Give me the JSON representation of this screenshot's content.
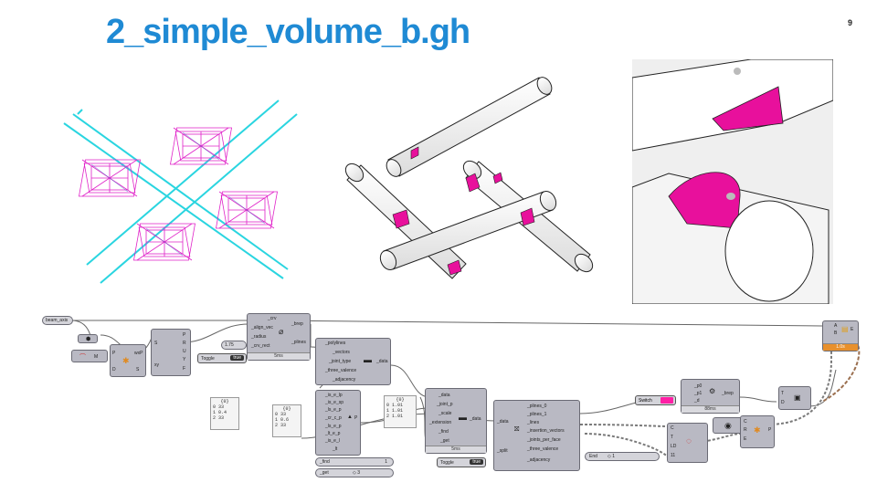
{
  "slide": {
    "title": "2_simple_volume_b.gh",
    "page_number": "9"
  },
  "views": [
    {
      "name": "wireframe-view",
      "icon": "wireframe-view"
    },
    {
      "name": "shaded-model-view",
      "icon": "shaded-model-view"
    },
    {
      "name": "closeup-view",
      "icon": "closeup-view"
    }
  ],
  "canvas": {
    "param_beam": "beam_axis",
    "number_radius": "1.75",
    "toggle1_label": "Toggle",
    "toggle1_value": "true",
    "toggle2_label": "Toggle",
    "toggle2_value": "true",
    "switch_label": "Switch",
    "end_label": "End",
    "end_value": "◇ 1",
    "find_label": "_find",
    "find_value": "1",
    "get_label": "_get",
    "get_value": "◇ 3",
    "panel_a_head": "{0}",
    "panel_a_lines": [
      "0  33",
      "1  0.4",
      "2  33"
    ],
    "panel_b_head": "{0}",
    "panel_b_lines": [
      "0  33",
      "1  0.6",
      "2  33"
    ],
    "panel_c_head": "{0}",
    "panel_c_lines": [
      "0  1.01",
      "1  1.01",
      "2  1.01"
    ],
    "comp1_inputs": [
      "_crv",
      "_align_vec",
      "_radius",
      "_crv_rect"
    ],
    "comp1_outputs": [
      "_brep",
      "_plines"
    ],
    "comp1_time": "5ms",
    "comp2_inputs": [
      "_polylines",
      "_vectors",
      "_joint_type",
      "_three_valence",
      "_adjacency"
    ],
    "comp2_outputs": [
      "_data"
    ],
    "comp3_inputs": [
      "_is_e_lp",
      "_is_e_sp",
      "_ls_e_p",
      "_cr_c_p",
      "_ls_e_p",
      "_lt_e_p",
      "_is_e_l",
      "_lt"
    ],
    "comp3_outputs": [
      "P"
    ],
    "comp4_inputs": [
      "_data",
      "_joint_p",
      "_scale",
      "_extension",
      "_find",
      "_get"
    ],
    "comp4_outputs": [
      "_data"
    ],
    "comp4_time": "5ms",
    "comp5_inputs": [
      "_plines_0",
      "_plines_1",
      "_lines",
      "_insertion_vectors",
      "_joints_per_face",
      "_three_valence",
      "_adjacency"
    ],
    "comp5_left": [
      "_data",
      "_split"
    ],
    "comp6_inputs": [
      "_p0",
      "_p1",
      "_d"
    ],
    "comp6_outputs": [
      "_brep"
    ],
    "comp6_time": "88ms",
    "comp_yz_outputs": [
      "P",
      "R",
      "U",
      "Y",
      "F"
    ],
    "comp_yz_inputs": [
      "S",
      "xy"
    ],
    "comp_flip_ports": [
      "P",
      "wxP",
      "D",
      "S"
    ],
    "comp_circle_ports": [
      "C",
      "T",
      "LD",
      "11"
    ],
    "comp_cre_ports": [
      "C",
      "R",
      "E",
      "P"
    ],
    "comp_td_ports": [
      "T",
      "D"
    ],
    "comp_abe_ports": [
      "A",
      "B",
      "E"
    ],
    "comp_abe_time": "1.0s",
    "comp_m_port": "M"
  }
}
